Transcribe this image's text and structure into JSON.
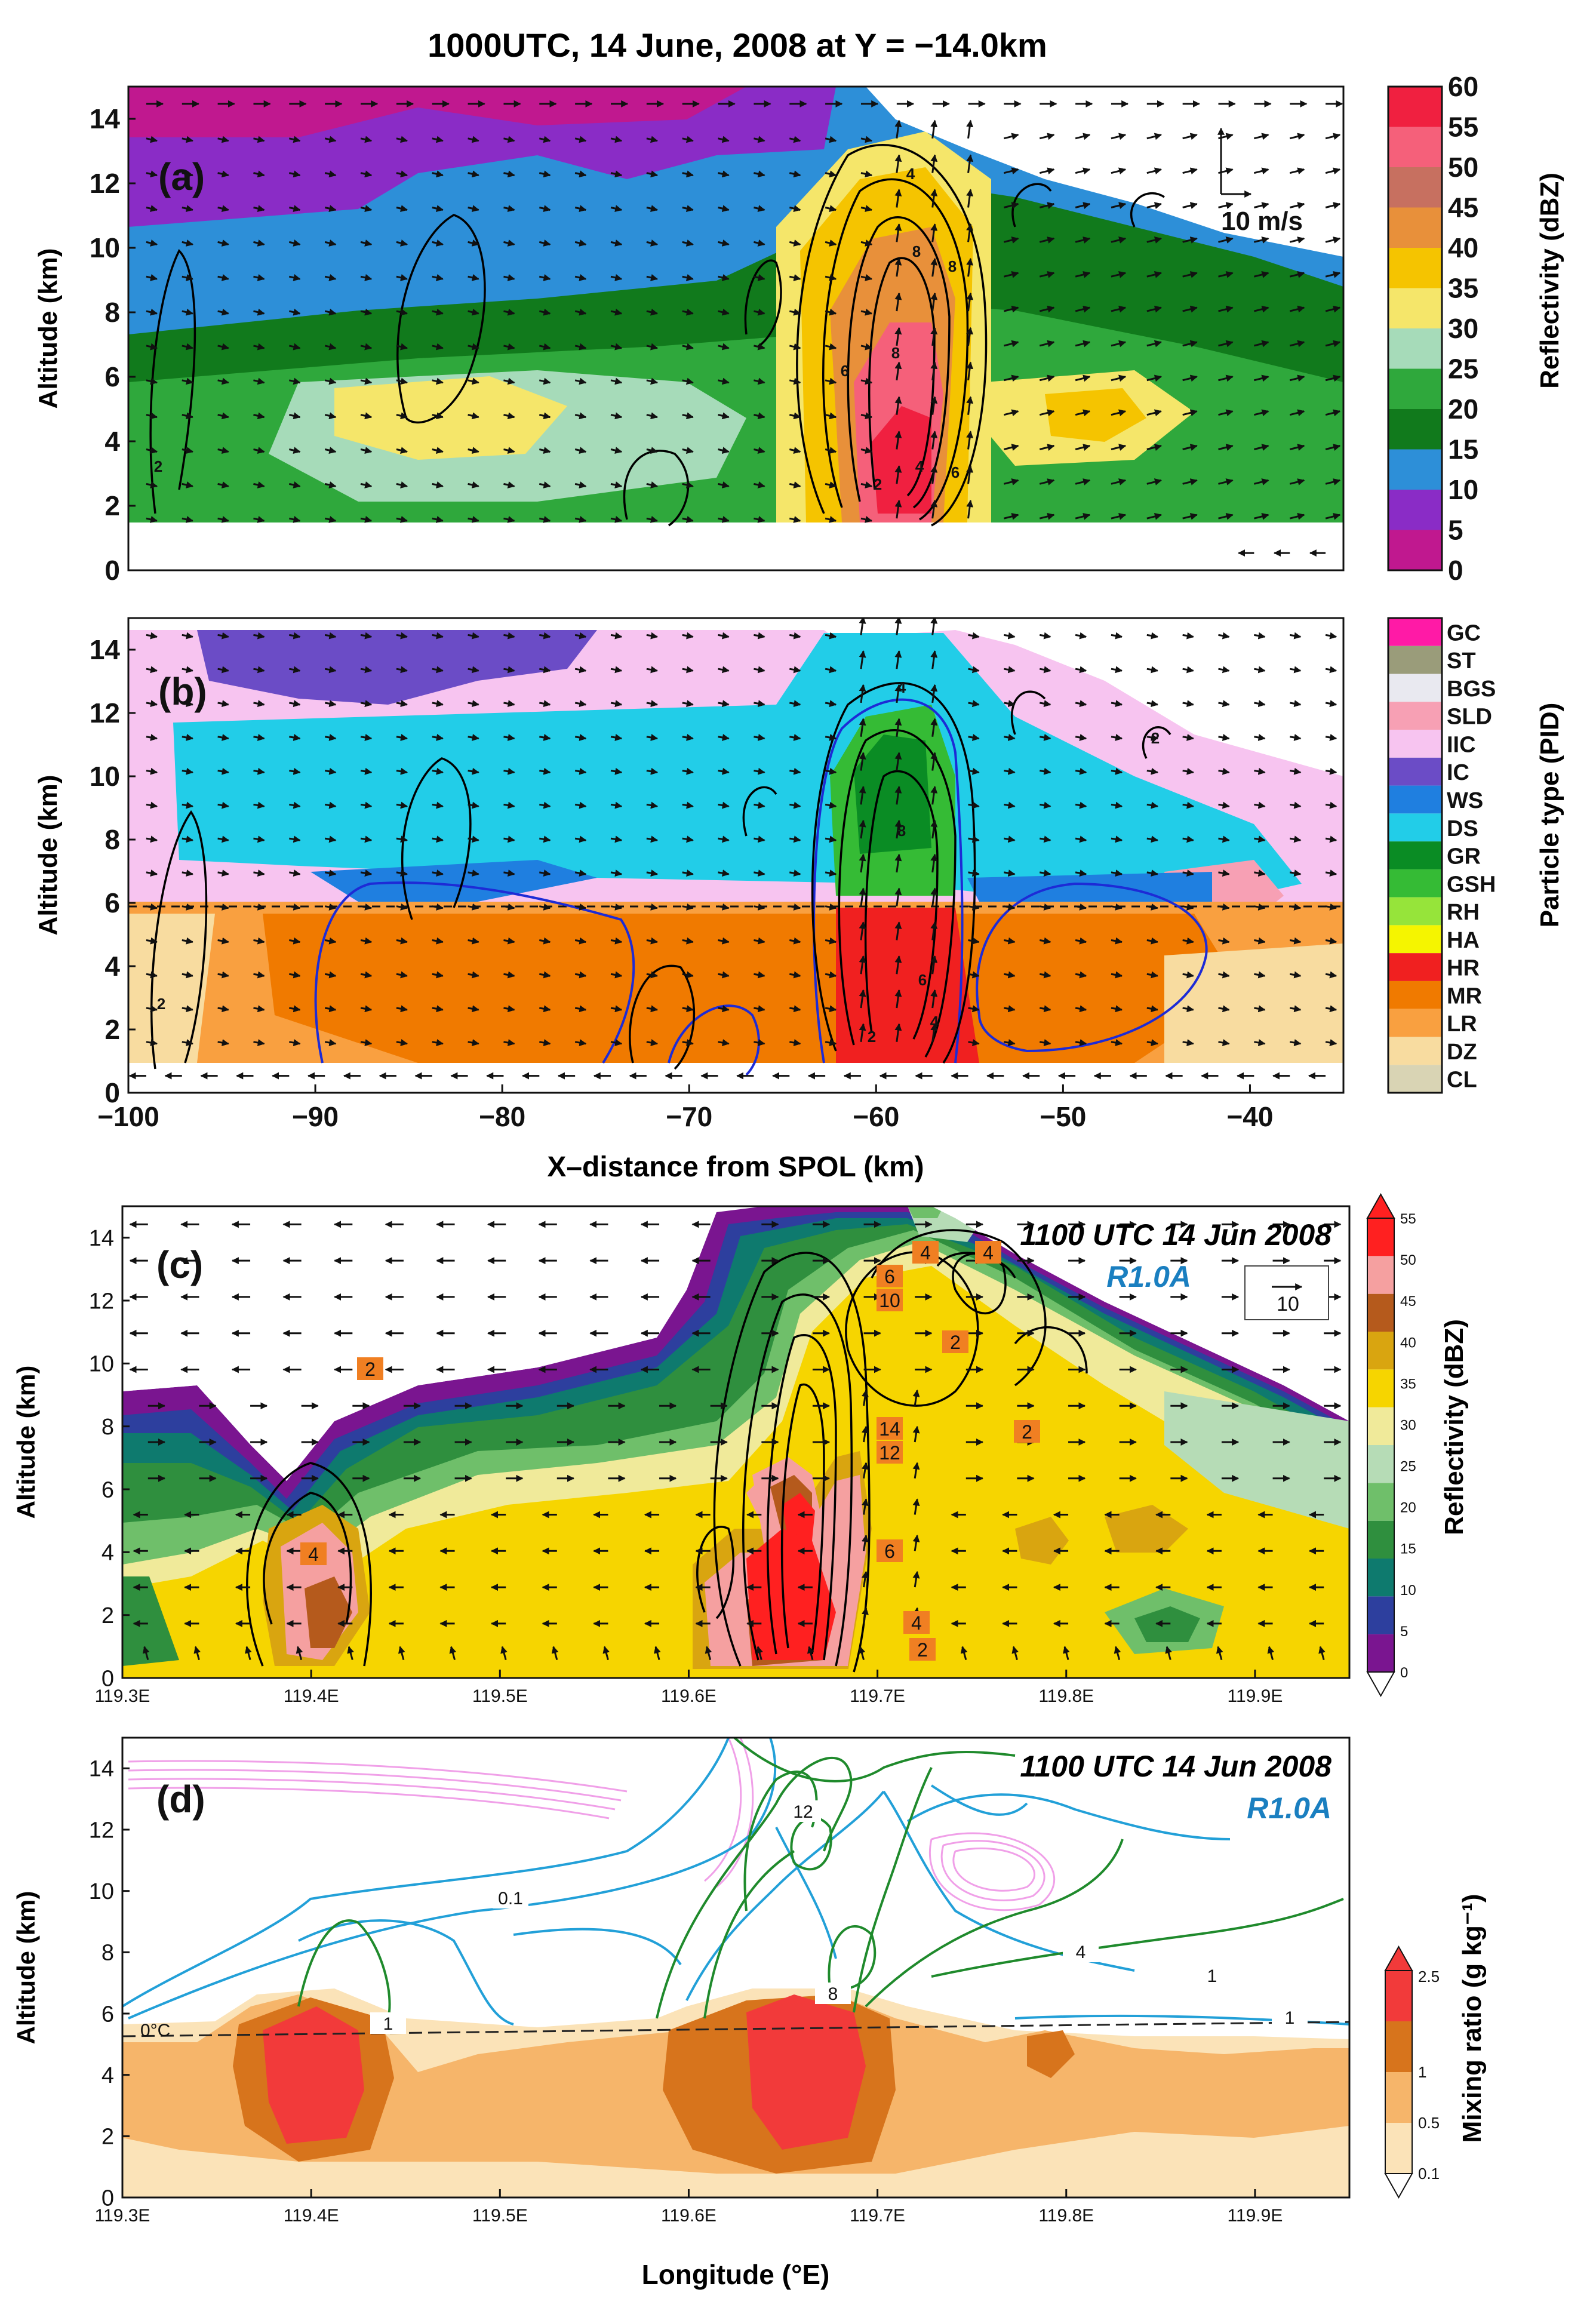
{
  "figure_title": "1000UTC, 14 June, 2008 at Y = −14.0km",
  "colors": {
    "refl_scale": [
      "#c0188f",
      "#8a2cc6",
      "#2d8fd8",
      "#117a1c",
      "#2fa83c",
      "#a6dbb9",
      "#f5e66a",
      "#f5c400",
      "#e8903a",
      "#c77060",
      "#f5607a",
      "#f02040"
    ],
    "pid_scale": [
      "#ff1aa6",
      "#9a9c7a",
      "#e9e9f0",
      "#f7a0b4",
      "#f7c4f0",
      "#6b4cc6",
      "#1f7fe0",
      "#22cde8",
      "#0a8c24",
      "#35bb35",
      "#96e43a",
      "#f5f500",
      "#f02020",
      "#f07a00",
      "#f9a040",
      "#f8dca0",
      "#d9d4b4"
    ],
    "model_refl": [
      "#7a1590",
      "#2d3f9e",
      "#0e7a6e",
      "#2f8f3e",
      "#6fbf6a",
      "#b6dcb6",
      "#f0ea9a",
      "#f6d500",
      "#d9a510",
      "#b55a1c",
      "#f5a0a0",
      "#ff2020"
    ],
    "mixing": [
      "#fbe3b8",
      "#f6b56a",
      "#d7741c",
      "#f23a3a"
    ],
    "vector": "#111111",
    "contour_black": "#000000",
    "contour_blue": "#1d2bd6",
    "contour_cyan": "#22a0d8",
    "contour_green": "#1f8a2c",
    "contour_pink": "#f0a0e8",
    "run_label": "#1a7fc0",
    "contour_label_bg": "#f07f22"
  },
  "chart_data": [
    {
      "id": "a",
      "type": "heatmap",
      "panel_label": "(a)",
      "title": "1000UTC, 14 June, 2008 at Y = −14.0km",
      "ylabel": "Altitude (km)",
      "xlabel": "",
      "xlim": [
        -100,
        -35
      ],
      "ylim": [
        0,
        15
      ],
      "ytick_labels": [
        "0",
        "2",
        "4",
        "6",
        "8",
        "10",
        "12",
        "14"
      ],
      "colorbar_label": "Reflectivity (dBZ)",
      "colorbar_ticks": [
        "0",
        "5",
        "10",
        "15",
        "20",
        "25",
        "30",
        "35",
        "40",
        "45",
        "50",
        "55",
        "60"
      ],
      "vector_scale_label": "10 m/s",
      "contour_labels": [
        "2",
        "4",
        "6",
        "8",
        "8",
        "8",
        "6",
        "4",
        "2"
      ]
    },
    {
      "id": "b",
      "type": "heatmap",
      "panel_label": "(b)",
      "ylabel": "Altitude (km)",
      "xlabel": "X–distance from SPOL (km)",
      "xlim": [
        -100,
        -35
      ],
      "ylim": [
        0,
        15
      ],
      "xtick_labels": [
        "−100",
        "−90",
        "−80",
        "−70",
        "−60",
        "−50",
        "−40"
      ],
      "ytick_labels": [
        "0",
        "2",
        "4",
        "6",
        "8",
        "10",
        "12",
        "14"
      ],
      "colorbar_label": "Particle type (PID)",
      "categories": [
        "GC",
        "ST",
        "BGS",
        "SLD",
        "IIC",
        "IC",
        "WS",
        "DS",
        "GR",
        "GSH",
        "RH",
        "HA",
        "HR",
        "MR",
        "LR",
        "DZ",
        "CL"
      ],
      "contour_labels": [
        "2",
        "4",
        "8",
        "6",
        "4",
        "2",
        "2"
      ]
    },
    {
      "id": "c",
      "type": "heatmap",
      "panel_label": "(c)",
      "time_label": "1100 UTC 14 Jun 2008",
      "run_label": "R1.0A",
      "ylabel": "Altitude (km)",
      "xlim": [
        119.3,
        119.95
      ],
      "ylim": [
        0,
        15
      ],
      "xtick_labels": [
        "119.3E",
        "119.4E",
        "119.5E",
        "119.6E",
        "119.7E",
        "119.8E",
        "119.9E"
      ],
      "ytick_labels": [
        "0",
        "2",
        "4",
        "6",
        "8",
        "10",
        "12",
        "14"
      ],
      "colorbar_label": "Reflectivity (dBZ)",
      "colorbar_ticks": [
        "0",
        "5",
        "10",
        "15",
        "20",
        "25",
        "30",
        "35",
        "40",
        "45",
        "50",
        "55"
      ],
      "vector_ref_label": "10",
      "contour_labels": [
        "2",
        "4",
        "4",
        "6",
        "10",
        "2",
        "2",
        "14",
        "12",
        "6",
        "4",
        "2",
        "4"
      ]
    },
    {
      "id": "d",
      "type": "line",
      "panel_label": "(d)",
      "time_label": "1100 UTC 14 Jun 2008",
      "run_label": "R1.0A",
      "ylabel": "Altitude (km)",
      "xlabel": "Longitude (°E)",
      "xlim": [
        119.3,
        119.95
      ],
      "ylim": [
        0,
        15
      ],
      "xtick_labels": [
        "119.3E",
        "119.4E",
        "119.5E",
        "119.6E",
        "119.7E",
        "119.8E",
        "119.9E"
      ],
      "ytick_labels": [
        "0",
        "2",
        "4",
        "6",
        "8",
        "10",
        "12",
        "14"
      ],
      "colorbar_label": "Mixing ratio (g kg⁻¹)",
      "colorbar_ticks": [
        "0.1",
        "0.5",
        "1",
        "2.5"
      ],
      "freezing_label": "0°C",
      "contour_labels": [
        "0.1",
        "12",
        "1",
        "4",
        "8",
        "1",
        "1"
      ]
    }
  ]
}
